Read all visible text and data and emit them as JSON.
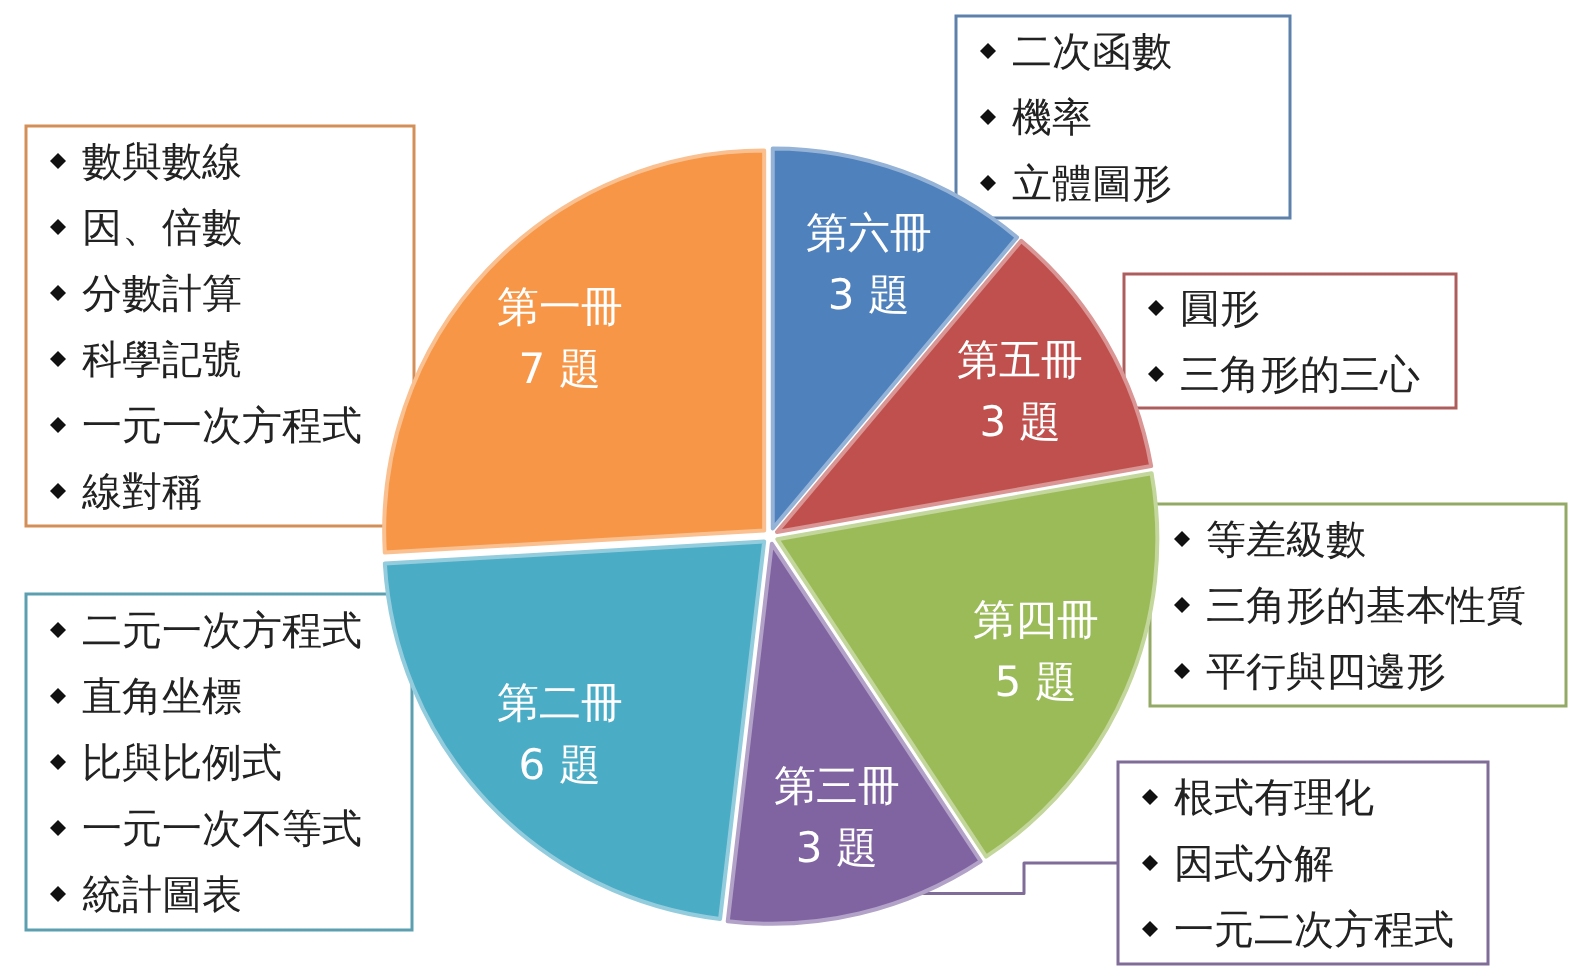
{
  "chart_data": {
    "type": "pie",
    "categories": [
      "第六冊",
      "第五冊",
      "第四冊",
      "第三冊",
      "第二冊",
      "第一冊"
    ],
    "values": [
      3,
      3,
      5,
      3,
      6,
      7
    ],
    "value_labels": [
      "3 題",
      "3 題",
      "5 題",
      "3 題",
      "6 題",
      "7 題"
    ],
    "colors": [
      "#4f81bd",
      "#c0504d",
      "#9bbb59",
      "#8064a2",
      "#4bacc6",
      "#f79646"
    ],
    "annotations": [
      "二次函數",
      "機率",
      "立體圖形",
      "圓形",
      "三角形的三心",
      "等差級數",
      "三角形的基本性質",
      "平行與四邊形",
      "根式有理化",
      "因式分解",
      "一元二次方程式",
      "二元一次方程式",
      "直角坐標",
      "比與比例式",
      "一元一次不等式",
      "統計圖表",
      "數與數線",
      "因、倍數",
      "分數計算",
      "科學記號",
      "一元一次方程式",
      "線對稱"
    ]
  }
}
